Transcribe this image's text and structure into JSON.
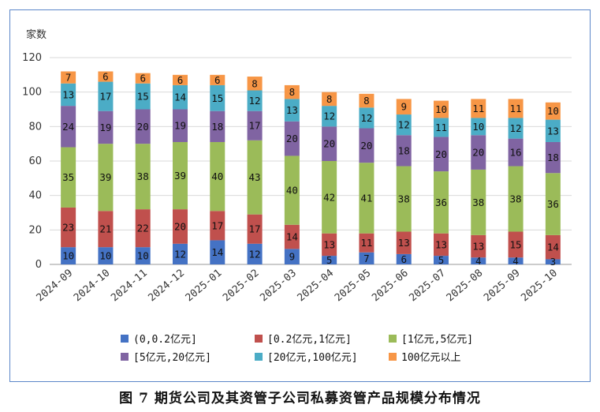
{
  "caption": "图 7   期货公司及其资管子公司私募资管产品规模分布情况",
  "chart_data": {
    "type": "bar",
    "stacked": true,
    "title": "",
    "ylabel": "家数",
    "xlabel": "",
    "ylim": [
      0,
      120
    ],
    "yticks": [
      0,
      20,
      40,
      60,
      80,
      100,
      120
    ],
    "grid": true,
    "legend_position": "bottom",
    "categories": [
      "2024-09",
      "2024-10",
      "2024-11",
      "2024-12",
      "2025-01",
      "2025-02",
      "2025-03",
      "2025-04",
      "2025-05",
      "2025-06",
      "2025-07",
      "2025-08",
      "2025-09",
      "2025-10"
    ],
    "series": [
      {
        "name": "(0,0.2亿元]",
        "color": "#4472c4",
        "values": [
          10,
          10,
          10,
          12,
          14,
          12,
          9,
          5,
          7,
          6,
          5,
          4,
          4,
          3
        ]
      },
      {
        "name": "[0.2亿元,1亿元]",
        "color": "#c0504d",
        "values": [
          23,
          21,
          22,
          20,
          17,
          17,
          14,
          13,
          11,
          13,
          13,
          13,
          15,
          14
        ]
      },
      {
        "name": "[1亿元,5亿元]",
        "color": "#9bbb59",
        "values": [
          35,
          39,
          38,
          39,
          40,
          43,
          40,
          42,
          41,
          38,
          36,
          38,
          38,
          36
        ]
      },
      {
        "name": "[5亿元,20亿元]",
        "color": "#8064a2",
        "values": [
          24,
          19,
          20,
          19,
          18,
          17,
          20,
          20,
          20,
          18,
          20,
          20,
          16,
          18
        ]
      },
      {
        "name": "[20亿元,100亿元]",
        "color": "#4bacc6",
        "values": [
          13,
          17,
          15,
          14,
          15,
          12,
          13,
          12,
          12,
          12,
          11,
          10,
          12,
          13
        ]
      },
      {
        "name": "100亿元以上",
        "color": "#f79646",
        "values": [
          7,
          6,
          6,
          6,
          6,
          8,
          8,
          8,
          8,
          9,
          10,
          11,
          11,
          10
        ]
      }
    ]
  }
}
